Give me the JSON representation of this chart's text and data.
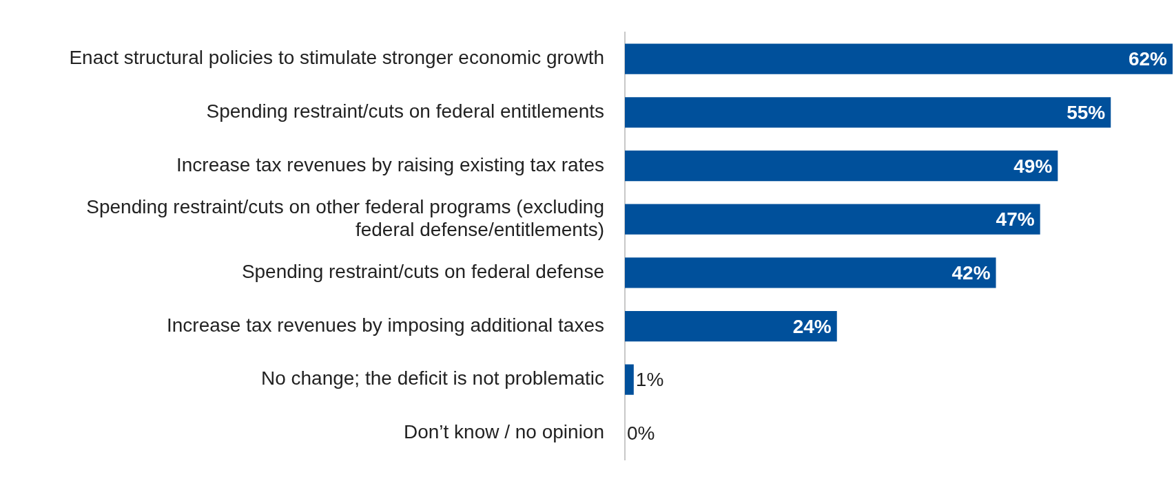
{
  "chart_data": {
    "type": "bar",
    "orientation": "horizontal",
    "categories": [
      "Enact structural policies to stimulate stronger economic growth",
      "Spending restraint/cuts on federal entitlements",
      "Increase tax revenues by raising existing tax rates",
      "Spending restraint/cuts on other federal programs (excluding federal defense/entitlements)",
      "Spending restraint/cuts on federal defense",
      "Increase tax revenues by imposing additional taxes",
      "No change; the deficit is not problematic",
      "Don’t know / no opinion"
    ],
    "values": [
      62,
      55,
      49,
      47,
      42,
      24,
      1,
      0
    ],
    "value_labels": [
      "62%",
      "55%",
      "49%",
      "47%",
      "42%",
      "24%",
      "1%",
      "0%"
    ],
    "color": "#00509b",
    "xlim": [
      0,
      62
    ],
    "tick_labels": "y",
    "legend": false
  }
}
